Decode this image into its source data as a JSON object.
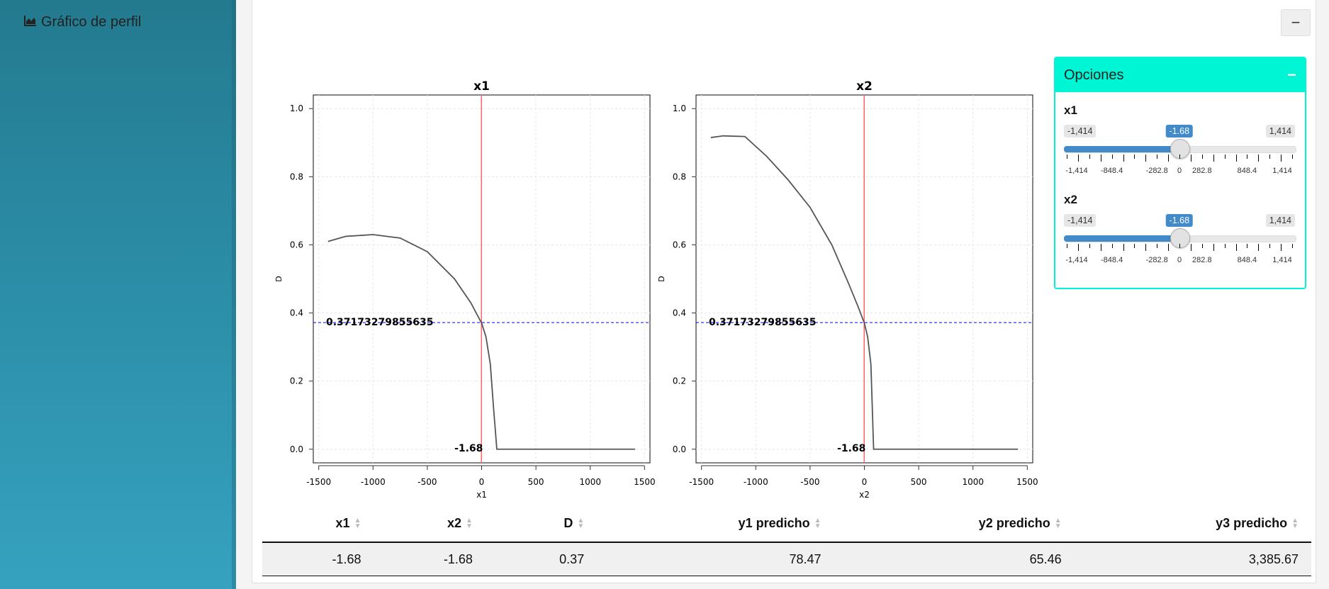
{
  "header": {
    "title": "Gráfico de perfil",
    "collapse_label": "−"
  },
  "colors": {
    "sidebar": "#2c8ea8",
    "options_accent": "#00f5d4",
    "slider_blue": "#428bca",
    "profile_line": "#555555",
    "cut_line_red": "#ff6666",
    "desirability_line": "#0000ff"
  },
  "plots": [
    {
      "title": "x1",
      "xlabel": "x1",
      "ylabel": "D",
      "x_ticks": [
        "-1500",
        "-1000",
        "-500",
        "0",
        "500",
        "1000",
        "1500"
      ],
      "y_ticks": [
        "0.0",
        "0.2",
        "0.4",
        "0.6",
        "0.8",
        "1.0"
      ],
      "hline_label": "0.37173279855635",
      "vline_label": "-1.68"
    },
    {
      "title": "x2",
      "xlabel": "x2",
      "ylabel": "D",
      "x_ticks": [
        "-1500",
        "-1000",
        "-500",
        "0",
        "500",
        "1000",
        "1500"
      ],
      "y_ticks": [
        "0.0",
        "0.2",
        "0.4",
        "0.6",
        "0.8",
        "1.0"
      ],
      "hline_label": "0.37173279855635",
      "vline_label": "-1.68"
    }
  ],
  "chart_data": [
    {
      "type": "line",
      "title": "x1",
      "xlabel": "x1",
      "ylabel": "D",
      "xlim": [
        -1550,
        1550
      ],
      "ylim": [
        -0.04,
        1.04
      ],
      "x": [
        -1414,
        -1250,
        -1000,
        -750,
        -500,
        -250,
        -100,
        0,
        40,
        80,
        110,
        140,
        300,
        600,
        900,
        1200,
        1414
      ],
      "y": [
        0.61,
        0.625,
        0.63,
        0.62,
        0.58,
        0.5,
        0.43,
        0.37,
        0.33,
        0.25,
        0.12,
        0.0,
        0.0,
        0.0,
        0.0,
        0.0,
        0.0
      ],
      "hline_y": 0.37173279855635,
      "vline_x": -1.68,
      "grid": true
    },
    {
      "type": "line",
      "title": "x2",
      "xlabel": "x2",
      "ylabel": "D",
      "xlim": [
        -1550,
        1550
      ],
      "ylim": [
        -0.04,
        1.04
      ],
      "x": [
        -1414,
        -1300,
        -1100,
        -900,
        -700,
        -500,
        -300,
        -150,
        -60,
        0,
        30,
        60,
        85,
        300,
        600,
        900,
        1200,
        1414
      ],
      "y": [
        0.915,
        0.92,
        0.918,
        0.86,
        0.79,
        0.71,
        0.6,
        0.49,
        0.42,
        0.37,
        0.33,
        0.25,
        0.0,
        0.0,
        0.0,
        0.0,
        0.0,
        0.0
      ],
      "hline_y": 0.37173279855635,
      "vline_x": -1.68,
      "grid": true
    }
  ],
  "options": {
    "title": "Opciones",
    "collapse_label": "−",
    "sliders": [
      {
        "label": "x1",
        "min_label": "-1,414",
        "max_label": "1,414",
        "current_label": "-1.68",
        "value": -1.68,
        "min": -1414,
        "max": 1414,
        "tick_labels": [
          "-1,414",
          "-848.4",
          "-282.8",
          "0",
          "282.8",
          "848.4",
          "1,414"
        ],
        "tick_values": [
          -1414,
          -848.4,
          -282.8,
          0,
          282.8,
          848.4,
          1414
        ]
      },
      {
        "label": "x2",
        "min_label": "-1,414",
        "max_label": "1,414",
        "current_label": "-1.68",
        "value": -1.68,
        "min": -1414,
        "max": 1414,
        "tick_labels": [
          "-1,414",
          "-848.4",
          "-282.8",
          "0",
          "282.8",
          "848.4",
          "1,414"
        ],
        "tick_values": [
          -1414,
          -848.4,
          -282.8,
          0,
          282.8,
          848.4,
          1414
        ]
      }
    ]
  },
  "table": {
    "headers": [
      "x1",
      "x2",
      "D",
      "y1 predicho",
      "y2 predicho",
      "y3 predicho"
    ],
    "rows": [
      [
        "-1.68",
        "-1.68",
        "0.37",
        "78.47",
        "65.46",
        "3,385.67"
      ]
    ]
  }
}
